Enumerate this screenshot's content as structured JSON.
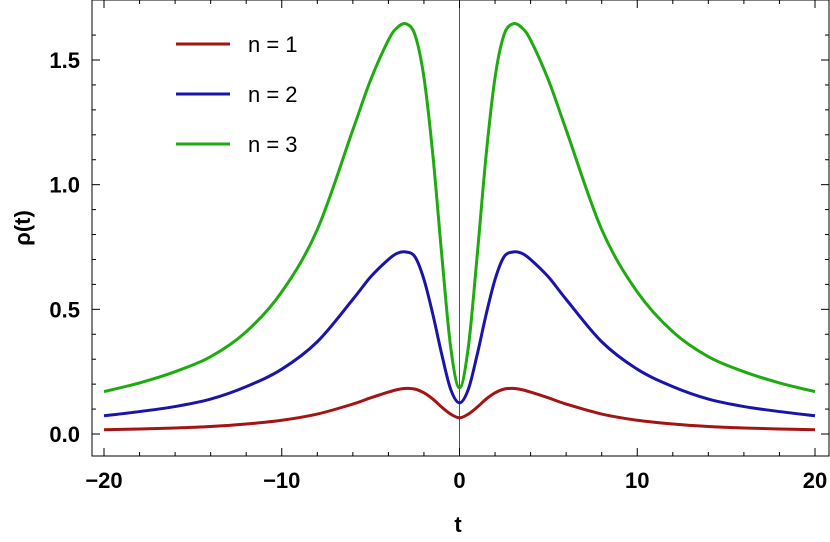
{
  "chart_data": {
    "type": "line",
    "title": "",
    "xlabel": "t",
    "ylabel": "ρ(t)",
    "xlim": [
      -20,
      20
    ],
    "ylim": [
      -0.1,
      1.72
    ],
    "xticks": [
      -20,
      -10,
      0,
      10,
      20
    ],
    "xtick_labels": [
      "−20",
      "−10",
      "0",
      "10",
      "20"
    ],
    "yticks": [
      0.0,
      0.5,
      1.0,
      1.5
    ],
    "ytick_labels": [
      "0.0",
      "0.5",
      "1.0",
      "1.5"
    ],
    "grid": false,
    "legend_position": "top-left",
    "x": [
      -20,
      -18,
      -16,
      -14,
      -12,
      -10,
      -8,
      -6,
      -5,
      -4,
      -3.5,
      -3,
      -2.5,
      -2,
      -1.5,
      -1,
      -0.5,
      0,
      0.5,
      1,
      1.5,
      2,
      2.5,
      3,
      3.5,
      4,
      5,
      6,
      8,
      10,
      12,
      14,
      16,
      18,
      20
    ],
    "series": [
      {
        "name": "n = 1",
        "color": "#a31414",
        "values": [
          0.017,
          0.02,
          0.024,
          0.03,
          0.04,
          0.055,
          0.08,
          0.12,
          0.145,
          0.168,
          0.178,
          0.183,
          0.18,
          0.165,
          0.14,
          0.108,
          0.08,
          0.065,
          0.08,
          0.108,
          0.14,
          0.165,
          0.18,
          0.183,
          0.178,
          0.168,
          0.145,
          0.12,
          0.08,
          0.055,
          0.04,
          0.03,
          0.024,
          0.02,
          0.017
        ]
      },
      {
        "name": "n = 2",
        "color": "#1a14a8",
        "values": [
          0.073,
          0.09,
          0.11,
          0.14,
          0.19,
          0.26,
          0.37,
          0.54,
          0.63,
          0.7,
          0.725,
          0.73,
          0.71,
          0.62,
          0.48,
          0.32,
          0.18,
          0.125,
          0.18,
          0.32,
          0.48,
          0.62,
          0.71,
          0.73,
          0.725,
          0.7,
          0.63,
          0.54,
          0.37,
          0.26,
          0.19,
          0.14,
          0.11,
          0.09,
          0.073
        ]
      },
      {
        "name": "n = 3",
        "color": "#1faa12",
        "values": [
          0.17,
          0.205,
          0.25,
          0.31,
          0.41,
          0.57,
          0.82,
          1.22,
          1.42,
          1.58,
          1.63,
          1.645,
          1.6,
          1.43,
          1.12,
          0.72,
          0.35,
          0.185,
          0.35,
          0.72,
          1.12,
          1.43,
          1.6,
          1.645,
          1.63,
          1.58,
          1.42,
          1.22,
          0.82,
          0.57,
          0.41,
          0.31,
          0.25,
          0.205,
          0.17
        ]
      }
    ]
  }
}
